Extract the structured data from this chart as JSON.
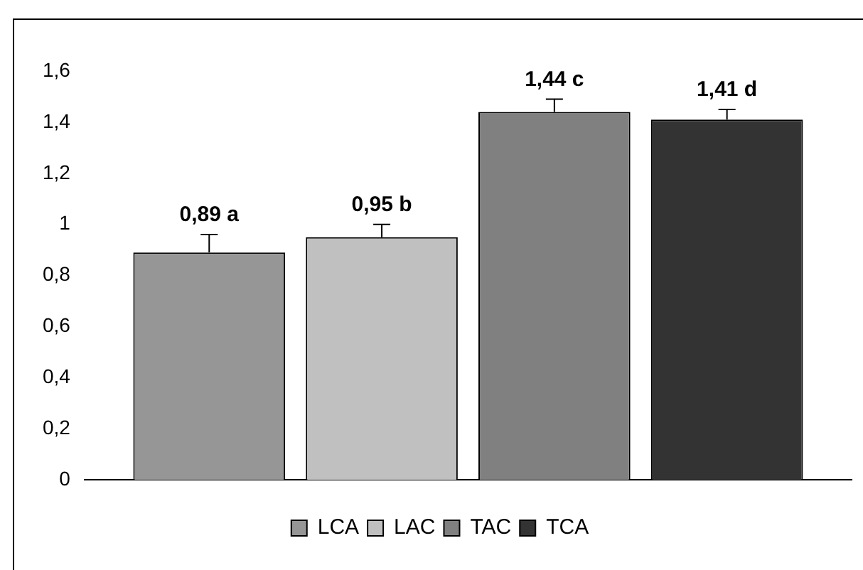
{
  "chart_data": {
    "type": "bar",
    "categories": [
      null
    ],
    "series": [
      {
        "name": "LCA",
        "color": "#969696",
        "values": [
          0.89
        ],
        "errors": [
          [
            0.89,
            0.96
          ]
        ],
        "value_labels": [
          "0,89 a"
        ]
      },
      {
        "name": "LAC",
        "color": "#c0c0c0",
        "values": [
          0.95
        ],
        "errors": [
          [
            0.95,
            1.0
          ]
        ],
        "value_labels": [
          "0,95 b"
        ]
      },
      {
        "name": "TAC",
        "color": "#808080",
        "values": [
          1.44
        ],
        "errors": [
          [
            1.44,
            1.49
          ]
        ],
        "value_labels": [
          "1,44 c"
        ]
      },
      {
        "name": "TCA",
        "color": "#333333",
        "values": [
          1.41
        ],
        "errors": [
          [
            1.41,
            1.45
          ]
        ],
        "value_labels": [
          "1,41 d"
        ]
      }
    ],
    "ylim": [
      0,
      1.6
    ],
    "yticks": [
      0,
      {
        "value": 0.2,
        "label": "0,2"
      },
      {
        "value": 0.4,
        "label": "0,4"
      },
      {
        "value": 0.6,
        "label": "0,6"
      },
      {
        "value": 0.8,
        "label": "0,8"
      },
      1,
      {
        "value": 1.2,
        "label": "1,2"
      },
      {
        "value": 1.4,
        "label": "1,4"
      },
      {
        "value": 1.6,
        "label": "1,6"
      }
    ],
    "grid": false,
    "legend": "bottom"
  }
}
